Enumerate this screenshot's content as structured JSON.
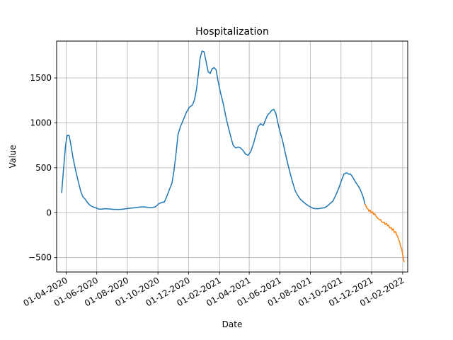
{
  "chart_data": {
    "type": "line",
    "title": "Hospitalization",
    "xlabel": "Date",
    "ylabel": "Value",
    "x_type": "date",
    "xlim": [
      "2020-03-13",
      "2022-02-11"
    ],
    "ylim": [
      -660,
      1910
    ],
    "x_ticks": [
      "2020-04-01",
      "2020-06-01",
      "2020-08-01",
      "2020-10-01",
      "2020-12-01",
      "2021-02-01",
      "2021-04-01",
      "2021-06-01",
      "2021-08-01",
      "2021-10-01",
      "2021-12-01",
      "2022-02-01"
    ],
    "x_tick_labels": [
      "01-04-2020",
      "01-06-2020",
      "01-08-2020",
      "01-10-2020",
      "01-12-2020",
      "01-02-2021",
      "01-04-2021",
      "01-06-2021",
      "01-08-2021",
      "01-10-2021",
      "01-12-2021",
      "01-02-2022"
    ],
    "y_ticks": [
      -500,
      0,
      500,
      1000,
      1500
    ],
    "y_tick_labels": [
      "−500",
      "0",
      "500",
      "1000",
      "1500"
    ],
    "grid": true,
    "series": [
      {
        "color": "#1f77b4",
        "points": [
          [
            "2020-03-23",
            220
          ],
          [
            "2020-03-27",
            500
          ],
          [
            "2020-03-31",
            760
          ],
          [
            "2020-04-03",
            860
          ],
          [
            "2020-04-07",
            860
          ],
          [
            "2020-04-11",
            740
          ],
          [
            "2020-04-15",
            600
          ],
          [
            "2020-04-20",
            470
          ],
          [
            "2020-04-25",
            350
          ],
          [
            "2020-04-30",
            240
          ],
          [
            "2020-05-04",
            180
          ],
          [
            "2020-05-09",
            150
          ],
          [
            "2020-05-14",
            110
          ],
          [
            "2020-05-19",
            80
          ],
          [
            "2020-05-24",
            65
          ],
          [
            "2020-05-30",
            55
          ],
          [
            "2020-06-05",
            40
          ],
          [
            "2020-06-11",
            40
          ],
          [
            "2020-06-18",
            45
          ],
          [
            "2020-06-26",
            42
          ],
          [
            "2020-07-04",
            38
          ],
          [
            "2020-07-12",
            35
          ],
          [
            "2020-07-21",
            38
          ],
          [
            "2020-07-29",
            45
          ],
          [
            "2020-08-07",
            50
          ],
          [
            "2020-08-16",
            55
          ],
          [
            "2020-08-25",
            62
          ],
          [
            "2020-09-03",
            65
          ],
          [
            "2020-09-10",
            60
          ],
          [
            "2020-09-18",
            55
          ],
          [
            "2020-09-26",
            65
          ],
          [
            "2020-10-03",
            100
          ],
          [
            "2020-10-09",
            115
          ],
          [
            "2020-10-14",
            120
          ],
          [
            "2020-10-19",
            185
          ],
          [
            "2020-10-24",
            260
          ],
          [
            "2020-10-29",
            330
          ],
          [
            "2020-11-02",
            470
          ],
          [
            "2020-11-06",
            650
          ],
          [
            "2020-11-10",
            870
          ],
          [
            "2020-11-15",
            960
          ],
          [
            "2020-11-21",
            1040
          ],
          [
            "2020-11-27",
            1120
          ],
          [
            "2020-12-03",
            1175
          ],
          [
            "2020-12-09",
            1200
          ],
          [
            "2020-12-13",
            1260
          ],
          [
            "2020-12-17",
            1380
          ],
          [
            "2020-12-21",
            1560
          ],
          [
            "2020-12-24",
            1720
          ],
          [
            "2020-12-28",
            1800
          ],
          [
            "2021-01-01",
            1790
          ],
          [
            "2021-01-05",
            1680
          ],
          [
            "2021-01-09",
            1570
          ],
          [
            "2021-01-13",
            1550
          ],
          [
            "2021-01-17",
            1600
          ],
          [
            "2021-01-21",
            1615
          ],
          [
            "2021-01-25",
            1590
          ],
          [
            "2021-01-29",
            1460
          ],
          [
            "2021-02-03",
            1330
          ],
          [
            "2021-02-08",
            1220
          ],
          [
            "2021-02-13",
            1080
          ],
          [
            "2021-02-18",
            960
          ],
          [
            "2021-02-23",
            850
          ],
          [
            "2021-02-28",
            750
          ],
          [
            "2021-03-05",
            720
          ],
          [
            "2021-03-10",
            730
          ],
          [
            "2021-03-15",
            720
          ],
          [
            "2021-03-20",
            690
          ],
          [
            "2021-03-25",
            650
          ],
          [
            "2021-03-30",
            640
          ],
          [
            "2021-04-04",
            680
          ],
          [
            "2021-04-09",
            760
          ],
          [
            "2021-04-14",
            860
          ],
          [
            "2021-04-19",
            960
          ],
          [
            "2021-04-24",
            990
          ],
          [
            "2021-04-29",
            970
          ],
          [
            "2021-05-04",
            1040
          ],
          [
            "2021-05-08",
            1090
          ],
          [
            "2021-05-12",
            1110
          ],
          [
            "2021-05-16",
            1140
          ],
          [
            "2021-05-20",
            1150
          ],
          [
            "2021-05-24",
            1110
          ],
          [
            "2021-05-28",
            1000
          ],
          [
            "2021-06-02",
            890
          ],
          [
            "2021-06-07",
            790
          ],
          [
            "2021-06-12",
            660
          ],
          [
            "2021-06-17",
            540
          ],
          [
            "2021-06-22",
            430
          ],
          [
            "2021-06-27",
            330
          ],
          [
            "2021-07-02",
            240
          ],
          [
            "2021-07-07",
            190
          ],
          [
            "2021-07-12",
            150
          ],
          [
            "2021-07-17",
            125
          ],
          [
            "2021-07-22",
            100
          ],
          [
            "2021-07-27",
            80
          ],
          [
            "2021-08-01",
            65
          ],
          [
            "2021-08-06",
            50
          ],
          [
            "2021-08-11",
            45
          ],
          [
            "2021-08-17",
            45
          ],
          [
            "2021-08-23",
            50
          ],
          [
            "2021-08-29",
            55
          ],
          [
            "2021-09-04",
            75
          ],
          [
            "2021-09-09",
            100
          ],
          [
            "2021-09-15",
            130
          ],
          [
            "2021-09-21",
            200
          ],
          [
            "2021-09-27",
            280
          ],
          [
            "2021-10-02",
            360
          ],
          [
            "2021-10-07",
            430
          ],
          [
            "2021-10-12",
            445
          ],
          [
            "2021-10-16",
            430
          ],
          [
            "2021-10-20",
            430
          ],
          [
            "2021-10-25",
            390
          ],
          [
            "2021-10-30",
            340
          ],
          [
            "2021-11-04",
            300
          ],
          [
            "2021-11-09",
            250
          ],
          [
            "2021-11-14",
            180
          ],
          [
            "2021-11-18",
            90
          ]
        ]
      },
      {
        "color": "#ff7f0e",
        "points": [
          [
            "2021-11-18",
            100
          ],
          [
            "2021-11-21",
            55
          ],
          [
            "2021-11-24",
            40
          ],
          [
            "2021-11-26",
            15
          ],
          [
            "2021-11-28",
            30
          ],
          [
            "2021-11-30",
            0
          ],
          [
            "2021-12-03",
            10
          ],
          [
            "2021-12-05",
            -20
          ],
          [
            "2021-12-07",
            -10
          ],
          [
            "2021-12-10",
            -40
          ],
          [
            "2021-12-12",
            -55
          ],
          [
            "2021-12-14",
            -65
          ],
          [
            "2021-12-17",
            -80
          ],
          [
            "2021-12-19",
            -75
          ],
          [
            "2021-12-21",
            -100
          ],
          [
            "2021-12-24",
            -110
          ],
          [
            "2021-12-26",
            -105
          ],
          [
            "2021-12-28",
            -130
          ],
          [
            "2021-12-31",
            -120
          ],
          [
            "2022-01-02",
            -145
          ],
          [
            "2022-01-04",
            -140
          ],
          [
            "2022-01-06",
            -170
          ],
          [
            "2022-01-09",
            -165
          ],
          [
            "2022-01-11",
            -195
          ],
          [
            "2022-01-13",
            -180
          ],
          [
            "2022-01-15",
            -220
          ],
          [
            "2022-01-18",
            -210
          ],
          [
            "2022-01-20",
            -250
          ],
          [
            "2022-01-22",
            -260
          ],
          [
            "2022-01-24",
            -300
          ],
          [
            "2022-01-26",
            -330
          ],
          [
            "2022-01-28",
            -380
          ],
          [
            "2022-01-30",
            -400
          ],
          [
            "2022-02-01",
            -470
          ],
          [
            "2022-02-02",
            -500
          ],
          [
            "2022-02-04",
            -550
          ]
        ]
      }
    ]
  }
}
